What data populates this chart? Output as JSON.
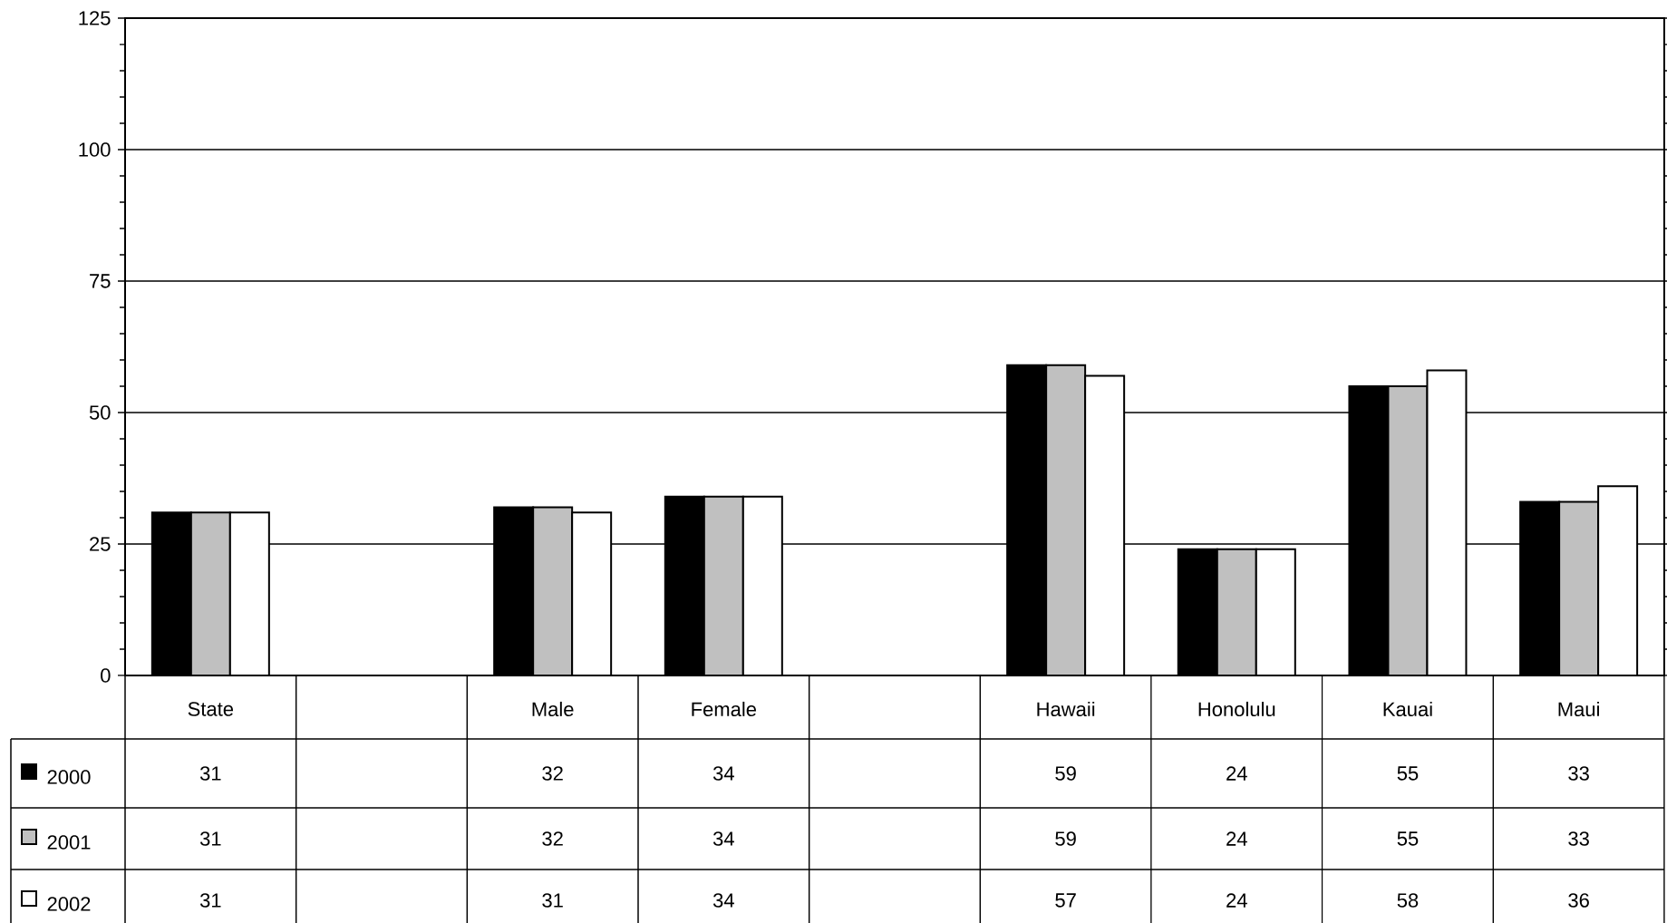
{
  "chart_data": {
    "type": "bar",
    "categories": [
      "State",
      null,
      "Male",
      "Female",
      null,
      "Hawaii",
      "Honolulu",
      "Kauai",
      "Maui"
    ],
    "series": [
      {
        "name": "2000",
        "color": "#000000",
        "values": [
          31,
          null,
          32,
          34,
          null,
          59,
          24,
          55,
          33
        ]
      },
      {
        "name": "2001",
        "color": "#c0c0c0",
        "values": [
          31,
          null,
          32,
          34,
          null,
          59,
          24,
          55,
          33
        ]
      },
      {
        "name": "2002",
        "color": "#ffffff",
        "values": [
          31,
          null,
          31,
          34,
          null,
          57,
          24,
          58,
          36
        ]
      }
    ],
    "ylim": [
      0,
      125
    ],
    "yticks": [
      0,
      25,
      50,
      75,
      100,
      125
    ],
    "grid": "y",
    "legend": "bottom",
    "data_labels": true
  }
}
